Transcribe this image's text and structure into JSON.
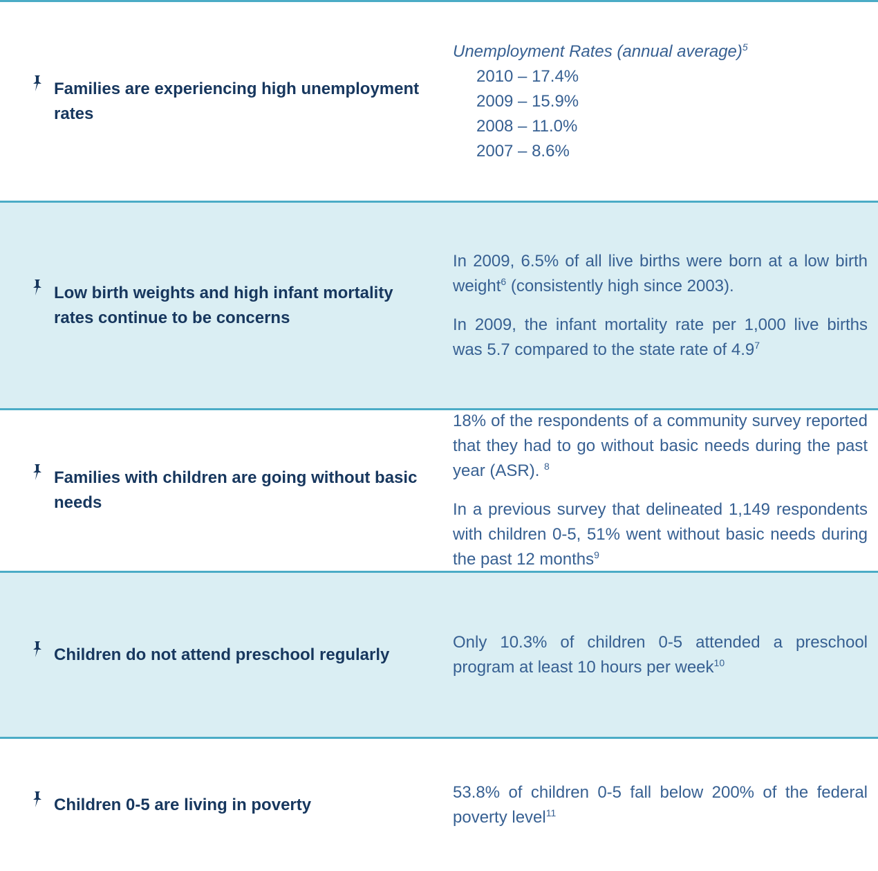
{
  "rows": [
    {
      "issue": "Families are experiencing high unemployment rates",
      "caption": "Unemployment Rates (annual average)",
      "caption_note": "5",
      "items": [
        "2010 – 17.4%",
        "2009 – 15.9%",
        "2008 – 11.0%",
        "2007 – 8.6%"
      ]
    },
    {
      "issue": "Low birth weights and high infant mortality rates continue to be concerns",
      "paragraphs": [
        [
          {
            "text": "In 2009, 6.5% of all live births were born at a low birth weight"
          },
          {
            "sup": "6"
          },
          {
            "text": " (consistently high since 2003)."
          }
        ],
        [
          {
            "text": "In 2009, the infant mortality rate per 1,000 live births was 5.7 compared to the state rate of 4.9"
          },
          {
            "sup": "7"
          }
        ]
      ]
    },
    {
      "issue": "Families with children are going without basic needs",
      "paragraphs": [
        [
          {
            "text": "18% of the respondents of a community survey reported that they had to go without basic needs during the past year (ASR). "
          },
          {
            "sup": "8"
          }
        ],
        [
          {
            "text": "In a previous survey that delineated 1,149 respondents with children 0-5, 51% went without basic needs during the past 12 months"
          },
          {
            "sup": "9"
          }
        ]
      ]
    },
    {
      "issue": "Children do not attend preschool regularly",
      "paragraphs": [
        [
          {
            "text": "Only 10.3% of children 0-5 attended a preschool program at least 10 hours per week"
          },
          {
            "sup": "10"
          }
        ]
      ]
    },
    {
      "issue": "Children 0-5 are living in poverty",
      "paragraphs": [
        [
          {
            "text": "53.8% of children 0-5 fall below 200% of the federal poverty level"
          },
          {
            "sup": "11"
          }
        ]
      ]
    }
  ]
}
